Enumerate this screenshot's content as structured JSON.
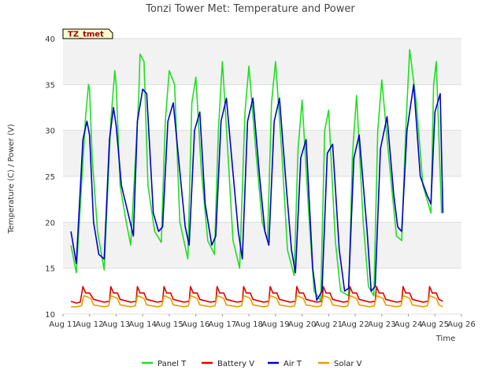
{
  "chart_data": {
    "type": "line",
    "title": "Tonzi Tower Met: Temperature and Power",
    "xlabel": "Time",
    "ylabel": "Temperature (C) / Power (V)",
    "badge": "TZ_tmet",
    "xlim": [
      11,
      26
    ],
    "ylim": [
      10,
      40
    ],
    "x_ticks": [
      {
        "x": 11,
        "label": "Aug 11"
      },
      {
        "x": 12,
        "label": "Aug 12"
      },
      {
        "x": 13,
        "label": "Aug 13"
      },
      {
        "x": 14,
        "label": "Aug 14"
      },
      {
        "x": 15,
        "label": "Aug 15"
      },
      {
        "x": 16,
        "label": "Aug 16"
      },
      {
        "x": 17,
        "label": "Aug 17"
      },
      {
        "x": 18,
        "label": "Aug 18"
      },
      {
        "x": 19,
        "label": "Aug 19"
      },
      {
        "x": 20,
        "label": "Aug 20"
      },
      {
        "x": 21,
        "label": "Aug 21"
      },
      {
        "x": 22,
        "label": "Aug 22"
      },
      {
        "x": 23,
        "label": "Aug 23"
      },
      {
        "x": 24,
        "label": "Aug 24"
      },
      {
        "x": 25,
        "label": "Aug 25"
      },
      {
        "x": 26,
        "label": "Aug 26"
      }
    ],
    "y_ticks": [
      10,
      15,
      20,
      25,
      30,
      35,
      40
    ],
    "grid": true,
    "legend_position": "bottom",
    "series": [
      {
        "name": "Panel T",
        "color": "#22dd22",
        "x": [
          11.3,
          11.5,
          11.85,
          11.96,
          12.0,
          12.1,
          12.3,
          12.55,
          12.8,
          12.95,
          13.0,
          13.15,
          13.35,
          13.55,
          13.85,
          13.9,
          14.05,
          14.2,
          14.45,
          14.7,
          14.85,
          15.0,
          15.2,
          15.4,
          15.7,
          15.85,
          16.0,
          16.2,
          16.45,
          16.7,
          16.85,
          17.0,
          17.2,
          17.4,
          17.65,
          17.85,
          18.0,
          18.25,
          18.5,
          18.7,
          18.85,
          19.0,
          19.25,
          19.45,
          19.7,
          19.85,
          20.0,
          20.25,
          20.45,
          20.7,
          20.85,
          21.0,
          21.25,
          21.45,
          21.75,
          21.9,
          22.05,
          22.3,
          22.5,
          22.7,
          22.85,
          23.0,
          23.3,
          23.55,
          23.75,
          23.9,
          24.05,
          24.3,
          24.55,
          24.85,
          24.95,
          25.05,
          25.25
        ],
        "y": [
          17.5,
          14.5,
          31.5,
          35.0,
          34.5,
          27.0,
          19.0,
          14.8,
          31.0,
          36.5,
          35.0,
          24.0,
          20.5,
          17.5,
          33.5,
          38.3,
          37.5,
          24.0,
          19.0,
          17.8,
          31.0,
          36.5,
          35.0,
          20.0,
          16.0,
          33.0,
          35.8,
          26.0,
          18.0,
          16.5,
          30.0,
          37.5,
          28.0,
          18.0,
          15.0,
          32.0,
          37.0,
          28.0,
          20.0,
          18.0,
          33.0,
          37.5,
          27.0,
          17.0,
          14.2,
          28.0,
          33.3,
          21.0,
          12.5,
          11.5,
          30.0,
          32.2,
          18.0,
          12.5,
          12.0,
          27.5,
          33.8,
          20.0,
          13.0,
          12.0,
          30.0,
          35.5,
          26.0,
          18.5,
          18.0,
          30.0,
          38.8,
          33.0,
          24.0,
          21.0,
          35.0,
          37.5,
          21.0
        ]
      },
      {
        "name": "Battery V",
        "color": "#dd0000",
        "x": [
          11.3,
          11.5,
          11.65,
          11.75,
          11.85,
          12.0,
          12.15,
          12.55,
          12.75,
          12.8,
          12.9,
          13.05,
          13.15,
          13.55,
          13.75,
          13.8,
          13.9,
          14.05,
          14.15,
          14.55,
          14.75,
          14.8,
          14.9,
          15.05,
          15.15,
          15.55,
          15.75,
          15.8,
          15.9,
          16.05,
          16.15,
          16.55,
          16.75,
          16.8,
          16.9,
          17.05,
          17.15,
          17.55,
          17.75,
          17.8,
          17.9,
          18.05,
          18.15,
          18.55,
          18.75,
          18.8,
          18.9,
          19.05,
          19.15,
          19.55,
          19.75,
          19.8,
          19.9,
          20.05,
          20.15,
          20.55,
          20.75,
          20.8,
          20.9,
          21.05,
          21.15,
          21.55,
          21.75,
          21.8,
          21.9,
          22.05,
          22.15,
          22.55,
          22.75,
          22.8,
          22.9,
          23.05,
          23.15,
          23.55,
          23.75,
          23.8,
          23.9,
          24.05,
          24.15,
          24.55,
          24.75,
          24.8,
          24.9,
          25.05,
          25.15,
          25.3
        ],
        "y": [
          11.4,
          11.2,
          11.3,
          13.0,
          12.3,
          12.3,
          11.6,
          11.3,
          11.4,
          13.0,
          12.3,
          12.3,
          11.6,
          11.3,
          11.4,
          13.0,
          12.3,
          12.3,
          11.6,
          11.3,
          11.4,
          13.0,
          12.3,
          12.3,
          11.6,
          11.3,
          11.4,
          13.0,
          12.3,
          12.3,
          11.6,
          11.3,
          11.4,
          13.0,
          12.3,
          12.3,
          11.6,
          11.3,
          11.4,
          13.0,
          12.3,
          12.3,
          11.6,
          11.3,
          11.4,
          13.0,
          12.3,
          12.3,
          11.6,
          11.3,
          11.4,
          13.0,
          12.3,
          12.3,
          11.6,
          11.3,
          11.4,
          13.0,
          12.3,
          12.3,
          11.6,
          11.3,
          11.4,
          13.0,
          12.3,
          12.3,
          11.6,
          11.3,
          11.4,
          13.0,
          12.3,
          12.3,
          11.6,
          11.3,
          11.4,
          13.0,
          12.3,
          12.3,
          11.6,
          11.3,
          11.4,
          13.0,
          12.3,
          12.3,
          11.6,
          11.4
        ]
      },
      {
        "name": "Air T",
        "color": "#0000cc",
        "x": [
          11.3,
          11.5,
          11.75,
          11.9,
          12.0,
          12.15,
          12.35,
          12.55,
          12.75,
          12.9,
          13.0,
          13.2,
          13.45,
          13.65,
          13.8,
          14.0,
          14.15,
          14.4,
          14.6,
          14.75,
          14.95,
          15.15,
          15.35,
          15.6,
          15.75,
          15.95,
          16.15,
          16.35,
          16.6,
          16.75,
          16.95,
          17.15,
          17.35,
          17.6,
          17.75,
          17.95,
          18.15,
          18.4,
          18.6,
          18.75,
          18.95,
          19.15,
          19.4,
          19.6,
          19.75,
          19.95,
          20.15,
          20.4,
          20.55,
          20.75,
          20.95,
          21.15,
          21.4,
          21.6,
          21.75,
          21.95,
          22.15,
          22.45,
          22.6,
          22.75,
          22.95,
          23.2,
          23.45,
          23.6,
          23.75,
          23.95,
          24.2,
          24.45,
          24.7,
          24.85,
          25.0,
          25.2,
          25.3
        ],
        "y": [
          19.0,
          15.5,
          29.0,
          31.0,
          29.5,
          20.0,
          16.5,
          16.0,
          29.0,
          32.5,
          30.5,
          24.0,
          21.0,
          18.5,
          31.0,
          34.5,
          34.0,
          21.0,
          19.0,
          19.5,
          31.0,
          33.0,
          27.0,
          19.5,
          17.5,
          30.0,
          32.0,
          22.0,
          17.5,
          18.5,
          31.0,
          33.5,
          27.0,
          19.0,
          16.0,
          31.0,
          33.5,
          25.0,
          19.0,
          17.5,
          31.0,
          33.5,
          24.0,
          17.0,
          14.5,
          27.0,
          29.0,
          15.0,
          11.5,
          12.5,
          27.5,
          28.5,
          17.0,
          12.5,
          12.8,
          27.0,
          29.5,
          19.0,
          12.5,
          13.0,
          28.0,
          31.5,
          23.0,
          19.5,
          19.0,
          30.0,
          35.0,
          25.0,
          23.0,
          22.0,
          32.0,
          34.0,
          21.0
        ]
      },
      {
        "name": "Solar V",
        "color": "#ee9900",
        "x": [
          11.3,
          11.5,
          11.7,
          11.78,
          11.9,
          12.05,
          12.15,
          12.55,
          12.72,
          12.8,
          12.9,
          13.05,
          13.15,
          13.55,
          13.72,
          13.8,
          13.9,
          14.05,
          14.15,
          14.55,
          14.72,
          14.8,
          14.9,
          15.05,
          15.15,
          15.55,
          15.72,
          15.8,
          15.9,
          16.05,
          16.15,
          16.55,
          16.72,
          16.8,
          16.9,
          17.05,
          17.15,
          17.55,
          17.72,
          17.8,
          17.9,
          18.05,
          18.15,
          18.55,
          18.72,
          18.8,
          18.9,
          19.05,
          19.15,
          19.55,
          19.72,
          19.8,
          19.9,
          20.05,
          20.15,
          20.55,
          20.72,
          20.8,
          20.9,
          21.05,
          21.15,
          21.55,
          21.72,
          21.8,
          21.9,
          22.05,
          22.15,
          22.55,
          22.72,
          22.8,
          22.9,
          23.05,
          23.15,
          23.55,
          23.72,
          23.8,
          23.9,
          24.05,
          24.15,
          24.55,
          24.72,
          24.8,
          24.9,
          25.05,
          25.15,
          25.3
        ],
        "y": [
          10.8,
          10.8,
          10.9,
          12.0,
          11.9,
          11.7,
          11.0,
          10.8,
          10.9,
          12.0,
          11.9,
          11.7,
          11.0,
          10.8,
          10.9,
          12.0,
          11.9,
          11.7,
          11.0,
          10.8,
          10.9,
          12.0,
          11.9,
          11.7,
          11.0,
          10.8,
          10.9,
          12.0,
          11.9,
          11.7,
          11.0,
          10.8,
          10.9,
          12.0,
          11.9,
          11.7,
          11.0,
          10.8,
          10.9,
          12.0,
          11.9,
          11.7,
          11.0,
          10.8,
          10.9,
          12.0,
          11.9,
          11.7,
          11.0,
          10.8,
          10.9,
          12.0,
          11.9,
          11.7,
          11.0,
          10.8,
          10.9,
          12.0,
          11.9,
          11.7,
          11.0,
          10.8,
          10.9,
          12.0,
          11.9,
          11.7,
          11.0,
          10.8,
          10.9,
          12.0,
          11.9,
          11.7,
          11.0,
          10.8,
          10.9,
          12.0,
          11.9,
          11.7,
          11.0,
          10.8,
          10.9,
          12.0,
          11.9,
          11.7,
          11.0,
          10.8
        ]
      }
    ]
  }
}
